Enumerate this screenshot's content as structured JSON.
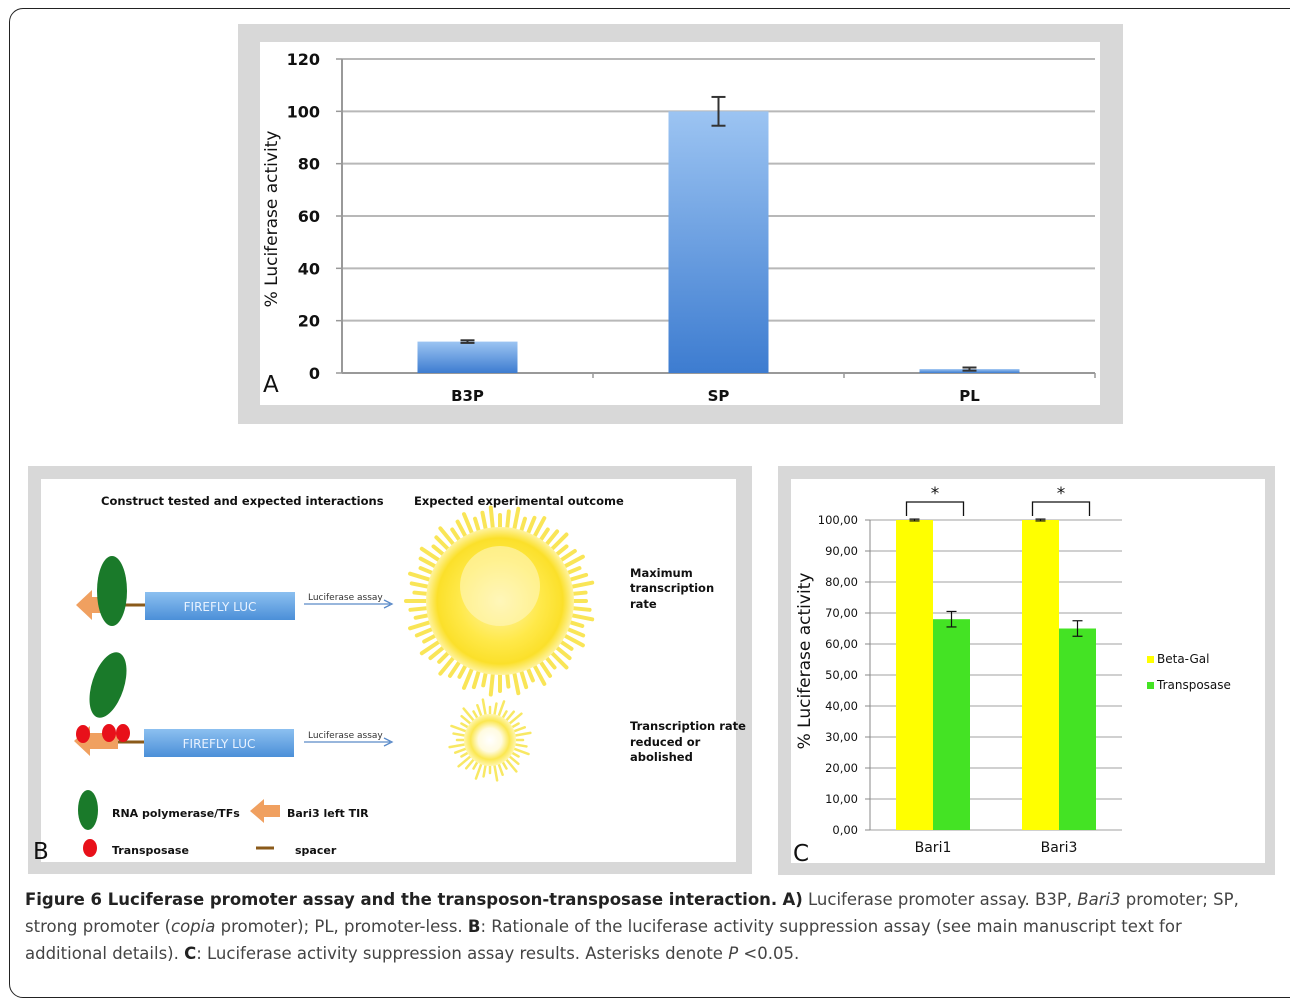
{
  "chart_data": [
    {
      "panel_letter": "A",
      "type": "bar",
      "categories": [
        "B3P",
        "SP",
        "PL"
      ],
      "values": [
        12,
        100,
        1.5
      ],
      "errors": [
        0.5,
        5.5,
        0.6
      ],
      "ylabel": "% Luciferase activity",
      "ylim": [
        0,
        120
      ],
      "yticks": [
        "0",
        "20",
        "40",
        "60",
        "80",
        "100",
        "120"
      ],
      "grid": true,
      "bar_color": "#5b96dd"
    },
    {
      "panel_letter": "C",
      "type": "bar",
      "categories": [
        "Bari1",
        "Bari3"
      ],
      "series": [
        {
          "name": "Beta-Gal",
          "values": [
            100,
            100
          ],
          "errors": [
            0.3,
            0.3
          ],
          "color": "#ffff00"
        },
        {
          "name": "Transposase",
          "values": [
            68,
            65
          ],
          "errors": [
            2.5,
            2.5
          ],
          "color": "#44e324"
        }
      ],
      "ylabel": "% Luciferase activity",
      "ylim": [
        0,
        100
      ],
      "yticks": [
        "0,00",
        "10,00",
        "20,00",
        "30,00",
        "40,00",
        "50,00",
        "60,00",
        "70,00",
        "80,00",
        "90,00",
        "100,00"
      ],
      "annotation": "*",
      "legend_position": "right",
      "grid": true
    }
  ],
  "panel_b": {
    "letter": "B",
    "heading_left": "Construct tested and expected interactions",
    "heading_right": "Expected experimental outcome",
    "construct_label": "FIREFLY LUC",
    "arrow_label": "Luciferase assay",
    "outcome_top": [
      "Maximum",
      "transcription",
      "rate"
    ],
    "outcome_bottom": [
      "Transcription rate",
      "reduced or",
      "abolished"
    ],
    "legend": {
      "rna_pol": "RNA polymerase/TFs",
      "tir": "Bari3 left TIR",
      "transposase": "Transposase",
      "spacer": "spacer"
    },
    "colors": {
      "green": "#1a7a2a",
      "orange": "#f0a060",
      "red": "#e8101a",
      "blue": "#6aa6e2"
    }
  },
  "caption": {
    "title": "Figure 6 Luciferase promoter assay and the transposon-transposase interaction.",
    "a_label": "A)",
    "a_text_1": " Luciferase promoter assay. B3P, ",
    "a_italic_1": "Bari3",
    "a_text_2": " promoter; SP, strong promoter (",
    "a_italic_2": "copia",
    "a_text_3": " promoter); PL, promoter-less. ",
    "b_label": "B",
    "b_text": ": Rationale of the luciferase activity suppression assay (see main manuscript text for additional details). ",
    "c_label": "C",
    "c_text": ": Luciferase activity suppression assay results. Asterisks denote ",
    "p_italic": "P",
    "p_text": " <0.05."
  }
}
